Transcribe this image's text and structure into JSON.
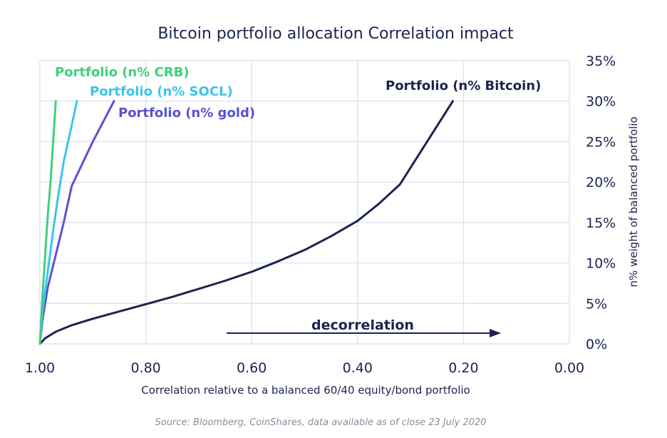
{
  "chart_data": {
    "type": "line",
    "title": "Bitcoin portfolio allocation Correlation impact",
    "xlabel": "Correlation relative to a balanced 60/40 equity/bond portfolio",
    "ylabel": "n% weight of balanced portfolio",
    "xlim": [
      1.0,
      0.0
    ],
    "ylim": [
      0,
      35
    ],
    "x_ticks": [
      "1.00",
      "0.80",
      "0.60",
      "0.40",
      "0.20",
      "0.00"
    ],
    "y_ticks": [
      "0%",
      "5%",
      "10%",
      "15%",
      "20%",
      "25%",
      "30%",
      "35%"
    ],
    "grid": "vertical and horizontal",
    "y_axis_side": "right",
    "colors": {
      "text": "#1c2350",
      "grid": "#dde3f2",
      "source": "#8a8f9c"
    },
    "series": [
      {
        "name": "Portfolio (n% Bitcoin)",
        "color": "#1c2350",
        "x": [
          1.0,
          0.99,
          0.97,
          0.94,
          0.9,
          0.85,
          0.8,
          0.75,
          0.7,
          0.65,
          0.6,
          0.55,
          0.5,
          0.45,
          0.4,
          0.36,
          0.32,
          0.22
        ],
        "y": [
          0,
          0.7,
          1.5,
          2.3,
          3.1,
          4.0,
          4.9,
          5.8,
          6.8,
          7.8,
          8.9,
          10.2,
          11.6,
          13.3,
          15.2,
          17.3,
          19.7,
          30
        ]
      },
      {
        "name": "Portfolio (n% gold)",
        "color": "#5a52d5",
        "x": [
          1.0,
          0.995,
          0.985,
          0.97,
          0.955,
          0.94,
          0.9,
          0.86
        ],
        "y": [
          0,
          3,
          7,
          11,
          15,
          19.5,
          25,
          30
        ]
      },
      {
        "name": "Portfolio (n% SOCL)",
        "color": "#3cc4ef",
        "x": [
          1.0,
          0.995,
          0.985,
          0.975,
          0.965,
          0.955,
          0.94,
          0.93
        ],
        "y": [
          0,
          4,
          9,
          14,
          18.5,
          22.5,
          27,
          30
        ]
      },
      {
        "name": "Portfolio (n% CRB)",
        "color": "#3ed07d",
        "x": [
          1.0,
          0.995,
          0.99,
          0.985,
          0.98,
          0.975,
          0.97
        ],
        "y": [
          0,
          6,
          11,
          16,
          20,
          25,
          30
        ]
      }
    ],
    "annotations": [
      "decorrelation"
    ]
  },
  "source_note": "Source: Bloomberg, CoinShares, data available as of close 23 July 2020"
}
